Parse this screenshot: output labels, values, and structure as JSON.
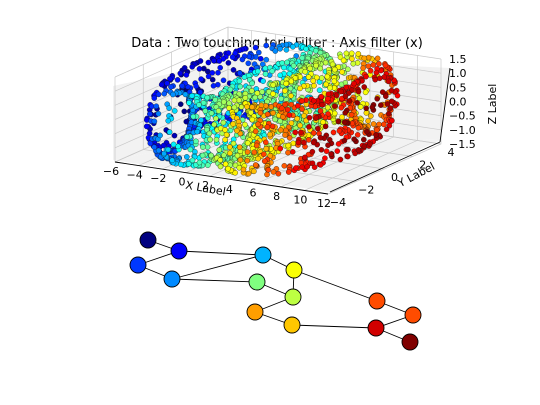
{
  "chart_data": [
    {
      "type": "scatter3d",
      "title": "Data : Two touching tori, Filter : Axis filter (x)",
      "xlabel": "X Label",
      "ylabel": "Y Label",
      "zlabel": "Z Label",
      "xticks": [
        "−6",
        "−4",
        "−2",
        "0",
        "2",
        "4",
        "6",
        "8",
        "10",
        "12"
      ],
      "yticks": [
        "−4",
        "−2",
        "0",
        "2",
        "4"
      ],
      "zticks": [
        "−1.5",
        "−1.0",
        "−0.5",
        "0.0",
        "0.5",
        "1.0",
        "1.5"
      ],
      "xlim": [
        -6,
        12
      ],
      "ylim": [
        -4,
        4
      ],
      "zlim": [
        -1.5,
        1.5
      ],
      "colormap": "jet",
      "color_by": "x",
      "series": [
        {
          "center": [
            0,
            0,
            0
          ],
          "major_radius": 4,
          "minor_radius": 1.2
        },
        {
          "center": [
            5,
            0,
            0
          ],
          "major_radius": 4,
          "minor_radius": 1.2
        }
      ]
    },
    {
      "type": "graph",
      "colormap": "jet",
      "nodes": [
        {
          "value": 0.0
        },
        {
          "value": 0.12
        },
        {
          "value": 0.18
        },
        {
          "value": 0.26
        },
        {
          "value": 0.3
        },
        {
          "value": 0.5
        },
        {
          "value": 0.62
        },
        {
          "value": 0.56
        },
        {
          "value": 0.72
        },
        {
          "value": 0.8
        },
        {
          "value": 0.68
        },
        {
          "value": 0.8
        },
        {
          "value": 0.92
        },
        {
          "value": 1.0
        }
      ],
      "edges": [
        [
          0,
          1
        ],
        [
          1,
          2
        ],
        [
          1,
          4
        ],
        [
          2,
          3
        ],
        [
          3,
          4
        ],
        [
          4,
          6
        ],
        [
          3,
          5
        ],
        [
          5,
          7
        ],
        [
          6,
          7
        ],
        [
          7,
          8
        ],
        [
          6,
          9
        ],
        [
          8,
          10
        ],
        [
          9,
          11
        ],
        [
          10,
          12
        ],
        [
          11,
          12
        ],
        [
          12,
          13
        ]
      ]
    }
  ]
}
